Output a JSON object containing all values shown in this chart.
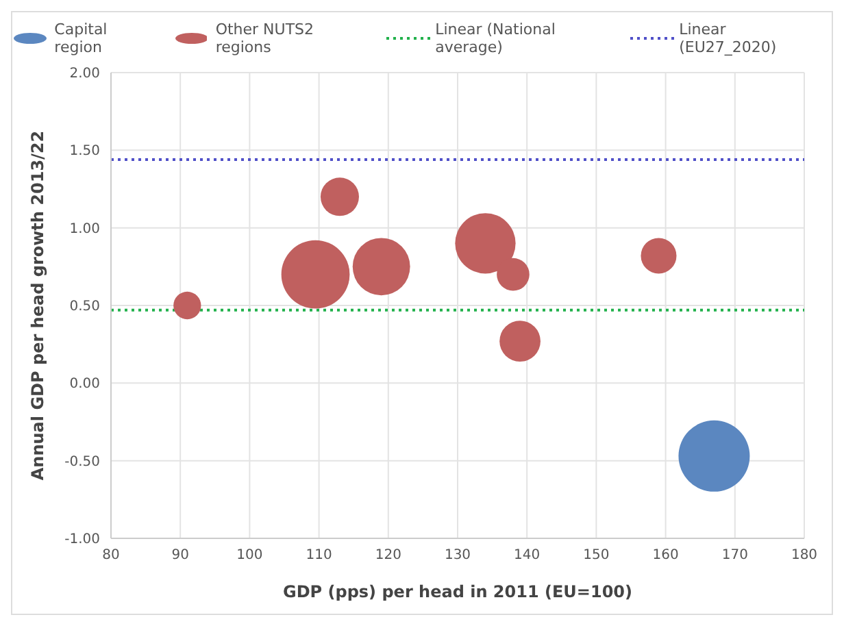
{
  "chart_data": {
    "type": "bubble",
    "xlabel": "GDP (pps) per head in 2011 (EU=100)",
    "ylabel": "Annual GDP per head growth 2013/22",
    "xlim": [
      80,
      180
    ],
    "xticks": [
      80,
      90,
      100,
      110,
      120,
      130,
      140,
      150,
      160,
      170,
      180
    ],
    "ylim": [
      -1,
      2
    ],
    "yticks": [
      {
        "value": -1,
        "label": "-1.00"
      },
      {
        "value": -0.5,
        "label": "-0.50"
      },
      {
        "value": 0,
        "label": "0.00"
      },
      {
        "value": 0.5,
        "label": "0.50"
      },
      {
        "value": 1,
        "label": "1.00"
      },
      {
        "value": 1.5,
        "label": "1.50"
      },
      {
        "value": 2,
        "label": "2.00"
      }
    ],
    "grid": true,
    "legend": "top",
    "series": [
      {
        "name": "Capital region",
        "color": "#5b87c0",
        "x": [
          167
        ],
        "values": [
          -0.47
        ],
        "sizes": [
          1
        ]
      },
      {
        "name": "Other NUTS2 regions",
        "color": "#c0605f",
        "x": [
          91,
          109.5,
          113,
          119,
          134,
          138,
          139,
          159
        ],
        "values": [
          0.5,
          0.7,
          1.2,
          0.75,
          0.9,
          0.7,
          0.27,
          0.82
        ],
        "sizes": [
          0.15,
          0.92,
          0.29,
          0.65,
          0.72,
          0.21,
          0.33,
          0.25
        ]
      }
    ],
    "ref_lines": [
      {
        "axis": "y",
        "value": 0.47,
        "label": "Linear (National average)",
        "color": "#22b14c",
        "line_style": "dotted"
      },
      {
        "axis": "y",
        "value": 1.44,
        "label": "Linear (EU27_2020)",
        "color": "#5050c8",
        "line_style": "dotted"
      }
    ]
  }
}
